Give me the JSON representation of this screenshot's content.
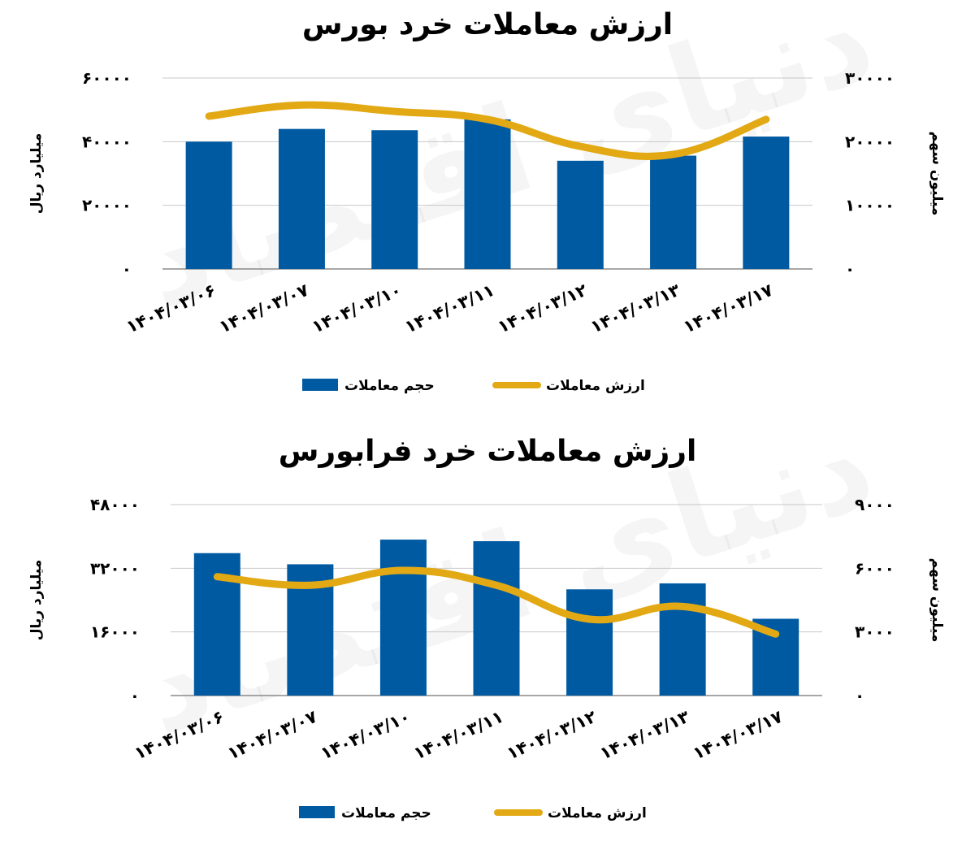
{
  "chart_data": [
    {
      "type": "bar",
      "title": "ارزش معاملات خرد بورس",
      "categories": [
        "۱۴۰۴/۰۳/۰۶",
        "۱۴۰۴/۰۳/۰۷",
        "۱۴۰۴/۰۳/۱۰",
        "۱۴۰۴/۰۳/۱۱",
        "۱۴۰۴/۰۳/۱۲",
        "۱۴۰۴/۰۳/۱۳",
        "۱۴۰۴/۰۳/۱۷"
      ],
      "y_left": {
        "label": "میلیارد ریال",
        "range": [
          0,
          60000
        ],
        "ticks": [
          0,
          20000,
          40000,
          60000
        ],
        "tick_labels": [
          "۰",
          "۲۰۰۰۰",
          "۴۰۰۰۰",
          "۶۰۰۰۰"
        ]
      },
      "y_right": {
        "label": "میلیون سهم",
        "range": [
          0,
          30000
        ],
        "ticks": [
          0,
          10000,
          20000,
          30000
        ],
        "tick_labels": [
          "۰",
          "۱۰۰۰۰",
          "۲۰۰۰۰",
          "۳۰۰۰۰"
        ]
      },
      "series": [
        {
          "name": "حجم معاملات",
          "kind": "bar",
          "axis": "right",
          "color": "#005aa2",
          "values": [
            20000,
            22000,
            21800,
            23500,
            17000,
            17800,
            20800
          ]
        },
        {
          "name": "ارزش معاملات",
          "kind": "line",
          "axis": "left",
          "color": "#e2a915",
          "values": [
            48000,
            51500,
            49500,
            47000,
            38500,
            36000,
            47000
          ]
        }
      ],
      "grid": true,
      "legend": "bottom",
      "watermark": "دنیای اقتصاد"
    },
    {
      "type": "bar",
      "title": "ارزش معاملات خرد فرابورس",
      "categories": [
        "۱۴۰۴/۰۳/۰۶",
        "۱۴۰۴/۰۳/۰۷",
        "۱۴۰۴/۰۳/۱۰",
        "۱۴۰۴/۰۳/۱۱",
        "۱۴۰۴/۰۳/۱۲",
        "۱۴۰۴/۰۳/۱۳",
        "۱۴۰۴/۰۳/۱۷"
      ],
      "y_left": {
        "label": "میلیارد ریال",
        "range": [
          0,
          48000
        ],
        "ticks": [
          0,
          16000,
          32000,
          48000
        ],
        "tick_labels": [
          "۰",
          "۱۶۰۰۰",
          "۳۲۰۰۰",
          "۴۸۰۰۰"
        ]
      },
      "y_right": {
        "label": "میلیون سهم",
        "range": [
          0,
          9000
        ],
        "ticks": [
          0,
          3000,
          6000,
          9000
        ],
        "tick_labels": [
          "۰",
          "۳۰۰۰",
          "۶۰۰۰",
          "۹۰۰۰"
        ]
      },
      "series": [
        {
          "name": "حجم معاملات",
          "kind": "bar",
          "axis": "left",
          "color": "#005aa2",
          "values": [
            35800,
            33000,
            39200,
            38800,
            26700,
            28200,
            19300
          ]
        },
        {
          "name": "ارزش معاملات",
          "kind": "line",
          "axis": "right",
          "color": "#e2a915",
          "values": [
            5600,
            5200,
            5900,
            5200,
            3600,
            4200,
            2900
          ]
        }
      ],
      "grid": true,
      "legend": "bottom",
      "watermark": "دنیای اقتصاد"
    }
  ]
}
